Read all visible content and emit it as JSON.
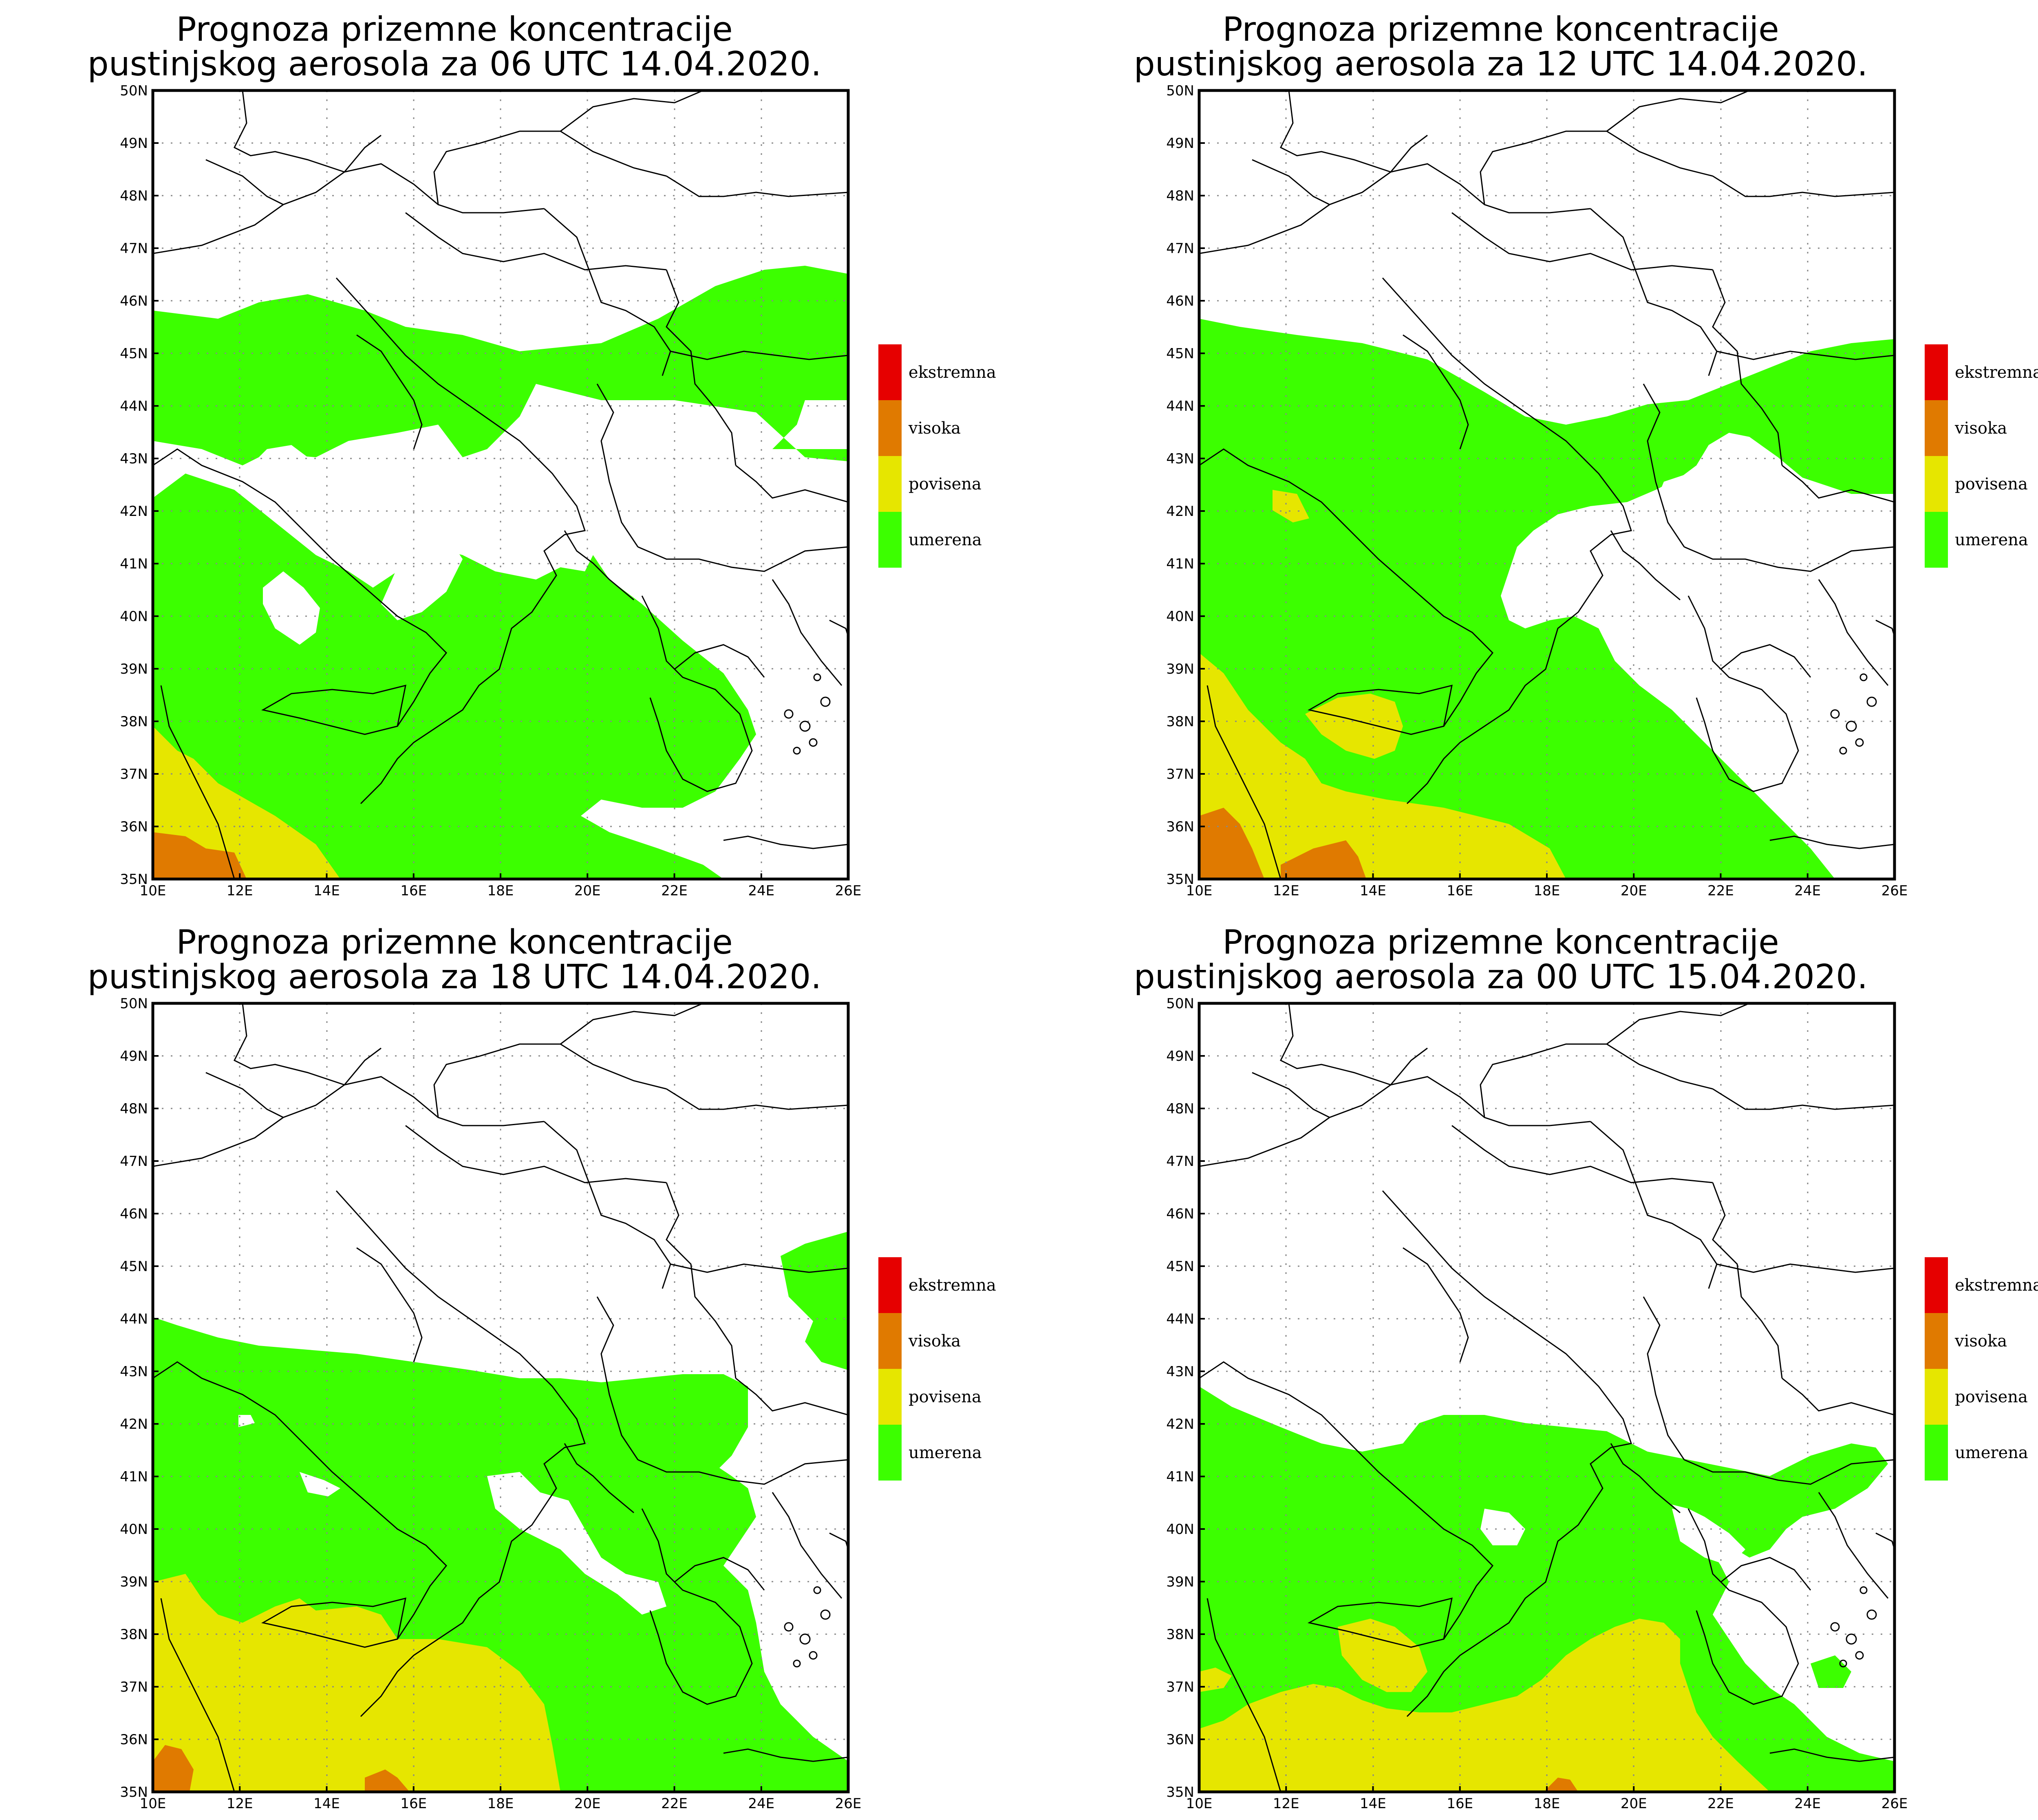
{
  "colors": {
    "umerena": "#3cff00",
    "povisena": "#e6e600",
    "visoka": "#e07a00",
    "ekstremna": "#e60000"
  },
  "legend": {
    "items": [
      "ekstremna",
      "visoka",
      "povisena",
      "umerena"
    ]
  },
  "axes": {
    "lon_labels": [
      "10E",
      "12E",
      "14E",
      "16E",
      "18E",
      "20E",
      "22E",
      "24E",
      "26E"
    ],
    "lat_labels": [
      "35N",
      "36N",
      "37N",
      "38N",
      "39N",
      "40N",
      "41N",
      "42N",
      "43N",
      "44N",
      "45N",
      "46N",
      "47N",
      "48N",
      "49N",
      "50N"
    ],
    "lon_range": [
      10,
      26
    ],
    "lat_range": [
      35,
      50
    ],
    "grid": "dotted"
  },
  "panels": [
    {
      "id": "p1",
      "title_line1": "Prognoza prizemne koncentracije",
      "title_line2": "pustinjskog aerosola za 06 UTC 14.04.2020."
    },
    {
      "id": "p2",
      "title_line1": "Prognoza prizemne koncentracije",
      "title_line2": "pustinjskog aerosola za 12 UTC 14.04.2020."
    },
    {
      "id": "p3",
      "title_line1": "Prognoza prizemne koncentracije",
      "title_line2": "pustinjskog aerosola za 18 UTC 14.04.2020."
    },
    {
      "id": "p4",
      "title_line1": "Prognoza prizemne koncentracije",
      "title_line2": "pustinjskog aerosola za 00 UTC 15.04.2020."
    }
  ]
}
